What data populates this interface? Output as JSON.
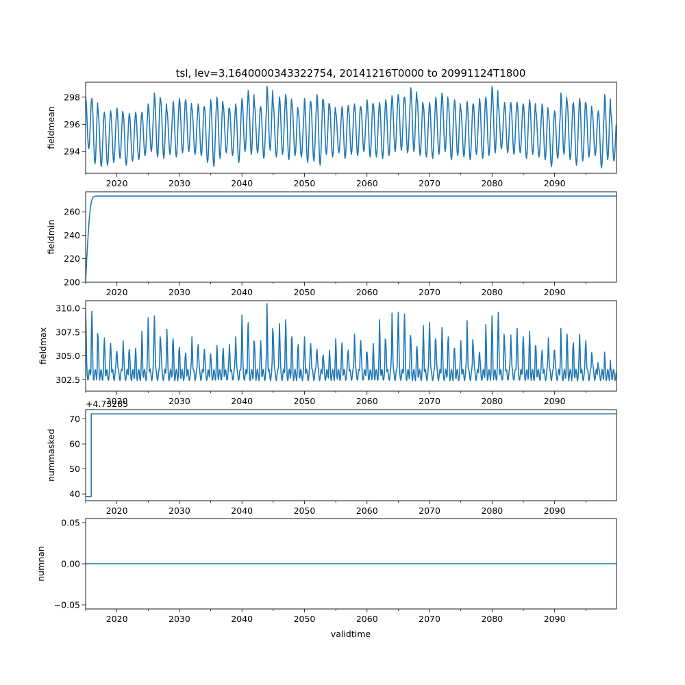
{
  "figure": {
    "title": "tsl, lev=3.1640000343322754, 20141216T0000 to 20991124T1800",
    "line_color": "#1f77b4",
    "xlabel": "validtime",
    "offset_label": "+4.73285"
  },
  "chart_data": [
    {
      "type": "line",
      "name": "fieldmean",
      "ylabel": "fieldmean",
      "xlim": [
        2015.0,
        2099.9
      ],
      "ylim": [
        292.4,
        299.1
      ],
      "xticks": [
        2020,
        2030,
        2040,
        2050,
        2060,
        2070,
        2080,
        2090
      ],
      "xtick_labels": [
        "2020",
        "2030",
        "2040",
        "2050",
        "2060",
        "2070",
        "2080",
        "2090"
      ],
      "yticks": [
        294,
        296,
        298
      ],
      "ytick_labels": [
        "294",
        "296",
        "298"
      ],
      "series": [
        {
          "name": "fieldmean",
          "description": "seasonal cycle, annual period",
          "period_years": 1.0,
          "mean": 295.6,
          "annual_peaks": [
            298.0,
            297.9,
            296.9,
            296.9,
            297.0,
            297.2,
            296.8,
            296.8,
            296.9,
            296.9,
            297.5,
            298.3,
            297.8,
            297.0,
            297.7,
            297.9,
            297.8,
            297.2,
            297.5,
            297.3,
            297.8,
            298.0,
            297.4,
            297.2,
            297.5,
            297.9,
            298.5,
            297.4,
            297.3,
            298.8,
            297.5,
            298.0,
            298.2,
            297.5,
            297.0,
            297.9,
            297.7,
            298.2,
            297.8,
            297.5,
            296.9,
            297.3,
            297.4,
            297.5,
            297.3,
            297.8,
            297.5,
            297.6,
            297.8,
            298.1,
            298.2,
            298.0,
            298.7,
            297.9,
            297.4,
            297.6,
            298.0,
            298.3,
            297.6,
            297.8,
            297.1,
            297.7,
            297.5,
            297.9,
            298.0,
            298.8,
            297.3,
            297.6,
            297.6,
            297.6,
            297.5,
            297.8,
            297.0,
            297.5,
            296.9,
            297.0,
            298.3,
            297.7,
            297.6,
            297.9,
            297.6,
            297.0,
            297.0,
            298.2,
            296.8
          ],
          "annual_troughs": [
            294.2,
            293.1,
            292.9,
            293.0,
            293.2,
            293.5,
            293.0,
            293.3,
            293.4,
            293.7,
            294.0,
            293.6,
            293.5,
            293.8,
            293.6,
            293.9,
            294.0,
            293.8,
            293.7,
            293.2,
            292.9,
            293.5,
            293.9,
            293.7,
            293.2,
            294.0,
            293.8,
            293.9,
            293.5,
            294.1,
            293.6,
            293.8,
            293.4,
            293.7,
            293.6,
            293.2,
            293.3,
            293.0,
            293.8,
            293.6,
            293.9,
            293.5,
            293.8,
            293.7,
            294.0,
            293.6,
            293.6,
            293.5,
            293.7,
            294.0,
            294.1,
            293.9,
            294.0,
            293.7,
            293.6,
            293.5,
            293.8,
            294.0,
            293.4,
            293.7,
            293.6,
            293.4,
            293.8,
            293.5,
            293.7,
            293.9,
            294.2,
            293.9,
            293.8,
            293.9,
            293.5,
            293.8,
            293.6,
            293.4,
            292.9,
            293.5,
            293.8,
            293.4,
            293.0,
            293.3,
            293.6,
            293.7,
            292.8,
            293.4,
            293.3
          ],
          "end_value": 295.3
        }
      ]
    },
    {
      "type": "line",
      "name": "fieldmin",
      "ylabel": "fieldmin",
      "xlim": [
        2015.0,
        2099.9
      ],
      "ylim": [
        200,
        277
      ],
      "xticks": [
        2020,
        2030,
        2040,
        2050,
        2060,
        2070,
        2080,
        2090
      ],
      "xtick_labels": [
        "2020",
        "2030",
        "2040",
        "2050",
        "2060",
        "2070",
        "2080",
        "2090"
      ],
      "yticks": [
        200,
        220,
        240,
        260
      ],
      "ytick_labels": [
        "200",
        "220",
        "240",
        "260"
      ],
      "series": [
        {
          "name": "fieldmin",
          "x": [
            2015.0,
            2015.2,
            2015.4,
            2015.6,
            2015.8,
            2016.0,
            2016.2,
            2016.5,
            2017.0,
            2099.9
          ],
          "y": [
            201,
            222,
            240,
            255,
            265,
            270,
            272.5,
            273.3,
            273.4,
            273.4
          ]
        }
      ]
    },
    {
      "type": "line",
      "name": "fieldmax",
      "ylabel": "fieldmax",
      "xlim": [
        2015.0,
        2099.9
      ],
      "ylim": [
        301.3,
        310.8
      ],
      "xticks": [
        2020,
        2030,
        2040,
        2050,
        2060,
        2070,
        2080,
        2090
      ],
      "xtick_labels": [
        "2020",
        "2030",
        "2040",
        "2050",
        "2060",
        "2070",
        "2080",
        "2090"
      ],
      "yticks": [
        302.5,
        305.0,
        307.5,
        310.0
      ],
      "ytick_labels": [
        "302.5",
        "305.0",
        "307.5",
        "310.0"
      ],
      "series": [
        {
          "name": "fieldmax",
          "description": "irregular annual peaks over a ~303 baseline",
          "period_years": 1.0,
          "annual_peaks": [
            309.9,
            309.7,
            307.0,
            306.9,
            306.3,
            305.5,
            306.6,
            305.7,
            305.8,
            307.6,
            309.0,
            309.2,
            306.6,
            307.8,
            306.8,
            305.9,
            305.3,
            307.0,
            306.2,
            305.7,
            305.2,
            306.1,
            305.8,
            306.2,
            307.0,
            309.3,
            308.5,
            306.4,
            306.6,
            310.5,
            307.4,
            308.4,
            308.8,
            307.0,
            306.2,
            307.0,
            306.3,
            305.7,
            305.1,
            305.6,
            306.8,
            306.4,
            305.6,
            307.3,
            306.6,
            305.4,
            306.3,
            308.8,
            306.6,
            309.5,
            309.6,
            309.4,
            306.9,
            306.0,
            308.2,
            308.5,
            306.8,
            308.0,
            307.0,
            305.8,
            306.6,
            308.7,
            306.0,
            305.4,
            308.3,
            309.2,
            309.6,
            306.5,
            307.2,
            307.9,
            307.0,
            307.6,
            306.1,
            305.6,
            306.9,
            305.6,
            307.9,
            307.3,
            306.4,
            307.3,
            306.6,
            305.0,
            303.9,
            305.4,
            303.6
          ],
          "baseline": 303.0,
          "end_value": 302.6
        }
      ]
    },
    {
      "type": "line",
      "name": "nummasked",
      "ylabel": "nummasked",
      "xlim": [
        2015.0,
        2099.9
      ],
      "ylim": [
        37.3,
        73.7
      ],
      "xticks": [
        2020,
        2030,
        2040,
        2050,
        2060,
        2070,
        2080,
        2090
      ],
      "xtick_labels": [
        "2020",
        "2030",
        "2040",
        "2050",
        "2060",
        "2070",
        "2080",
        "2090"
      ],
      "yticks": [
        40,
        50,
        60,
        70
      ],
      "ytick_labels": [
        "40",
        "50",
        "60",
        "70"
      ],
      "series": [
        {
          "name": "nummasked",
          "x": [
            2015.0,
            2015.9,
            2015.9,
            2099.9
          ],
          "y": [
            39,
            39,
            72,
            72
          ]
        }
      ]
    },
    {
      "type": "line",
      "name": "numnan",
      "ylabel": "numnan",
      "xlim": [
        2015.0,
        2099.9
      ],
      "ylim": [
        -0.055,
        0.055
      ],
      "xticks": [
        2020,
        2030,
        2040,
        2050,
        2060,
        2070,
        2080,
        2090
      ],
      "xtick_labels": [
        "2020",
        "2030",
        "2040",
        "2050",
        "2060",
        "2070",
        "2080",
        "2090"
      ],
      "yticks": [
        -0.05,
        0.0,
        0.05
      ],
      "ytick_labels": [
        "−0.05",
        "0.00",
        "0.05"
      ],
      "series": [
        {
          "name": "numnan",
          "x": [
            2015.0,
            2099.9
          ],
          "y": [
            0.0,
            0.0
          ]
        }
      ]
    }
  ]
}
